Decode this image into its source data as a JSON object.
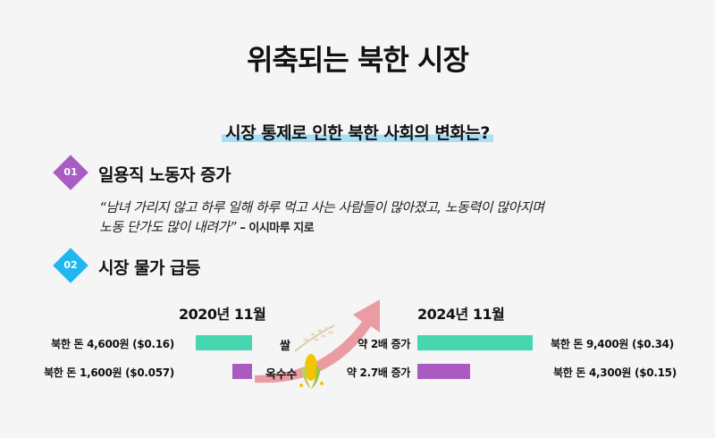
{
  "title": "위축되는 북한 시장",
  "subtitle": "시장 통제로 인한 북한 사회의 변화는?",
  "sections": [
    {
      "badge": "01",
      "heading": "일용직 노동자 증가",
      "quote_line1": "“남녀 가리지 않고 하루 일해 하루 먹고 사는 사람들이 많아졌고, 노동력이 많아지며",
      "quote_line2": "노동 단가도 많이 내려가”",
      "attribution": "– 이시마루 지로"
    },
    {
      "badge": "02",
      "heading": "시장 물가 급등"
    }
  ],
  "colors": {
    "badge1": "#a85cc4",
    "badge2": "#22b6ee",
    "rice": "#47d7b0",
    "corn": "#a95bc1",
    "highlight": "#a8dff5",
    "arrow": "#e8949a"
  },
  "chart_data": {
    "type": "bar",
    "periods": [
      "2020년 11월",
      "2024년 11월"
    ],
    "series": [
      {
        "name": "쌀",
        "values": [
          4600,
          9400
        ],
        "labels": [
          "북한 돈 4,600원 ($0.16)",
          "북한 돈 9,400원 ($0.34)"
        ],
        "change": "약 2배 증가"
      },
      {
        "name": "옥수수",
        "values": [
          1600,
          4300
        ],
        "labels": [
          "북한 돈 1,600원 ($0.057)",
          "북한 돈 4,300원 ($0.15)"
        ],
        "change": "약 2.7배 증가"
      }
    ],
    "unit": "북한 돈 원"
  }
}
